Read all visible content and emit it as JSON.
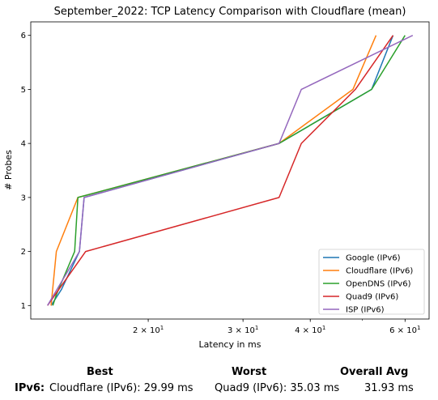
{
  "chart_data": {
    "type": "line",
    "title": "September_2022: TCP Latency Comparison with Cloudflare (mean)",
    "xlabel": "Latency in ms",
    "ylabel": "# Probes",
    "xscale": "log",
    "xlim": [
      12.1,
      66.5
    ],
    "ylim": [
      0.75,
      6.25
    ],
    "xticks": [
      {
        "value": 20,
        "label": "2 × 10^1"
      },
      {
        "value": 30,
        "label": "3 × 10^1"
      },
      {
        "value": 40,
        "label": "4 × 10^1"
      },
      {
        "value": 60,
        "label": "6 × 10^1"
      }
    ],
    "yticks": [
      1,
      2,
      3,
      4,
      5,
      6
    ],
    "grid": false,
    "legend_position": "lower right",
    "series": [
      {
        "name": "Google (IPv6)",
        "color": "#1f77b4",
        "x": [
          13.2,
          13.8,
          14.9,
          15.2,
          35.0,
          52.0,
          57.0
        ],
        "y": [
          1,
          1.3,
          2,
          3,
          4,
          5,
          6
        ]
      },
      {
        "name": "Cloudflare (IPv6)",
        "color": "#ff7f0e",
        "x": [
          13.2,
          13.5,
          14.8,
          35.0,
          48.0,
          53.0
        ],
        "y": [
          1,
          2,
          3,
          4,
          5,
          6
        ]
      },
      {
        "name": "OpenDNS (IPv6)",
        "color": "#2ca02c",
        "x": [
          13.3,
          13.5,
          14.6,
          14.8,
          35.0,
          52.0,
          60.0
        ],
        "y": [
          1,
          1.2,
          2,
          3,
          4,
          5,
          6
        ]
      },
      {
        "name": "Quad9 (IPv6)",
        "color": "#d62728",
        "x": [
          13.0,
          15.3,
          35.0,
          38.5,
          48.5,
          57.0
        ],
        "y": [
          1,
          2,
          3,
          4,
          5,
          6
        ]
      },
      {
        "name": "ISP (IPv6)",
        "color": "#9467bd",
        "x": [
          13.0,
          14.9,
          15.2,
          35.0,
          38.5,
          62.0
        ],
        "y": [
          1,
          2,
          3,
          4,
          5,
          6
        ]
      }
    ]
  },
  "summary": {
    "headers": {
      "best": "Best",
      "worst": "Worst",
      "avg": "Overall Avg"
    },
    "rows": [
      {
        "label": "IPv6:",
        "best": "Cloudflare (IPv6): 29.99 ms",
        "worst": "Quad9 (IPv6): 35.03 ms",
        "avg": "31.93 ms"
      }
    ]
  }
}
